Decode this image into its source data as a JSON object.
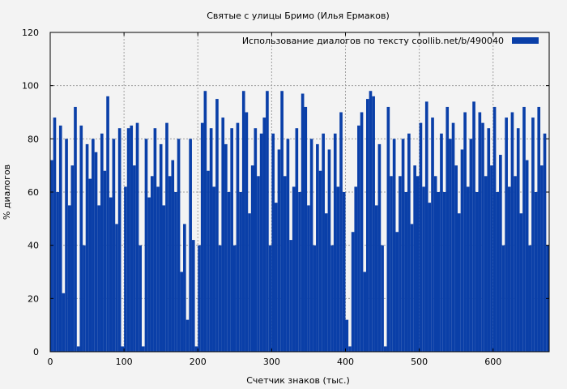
{
  "chart_data": {
    "type": "bar",
    "title": "Святые с улицы Бримо (Илья Ермаков)",
    "xlabel": "Счетчик знаков (тыс.)",
    "ylabel": "% диалогов",
    "xlim": [
      0,
      676
    ],
    "ylim": [
      0,
      120
    ],
    "xticks": [
      0,
      100,
      200,
      300,
      400,
      500,
      600
    ],
    "yticks": [
      0,
      20,
      40,
      60,
      80,
      100,
      120
    ],
    "grid": true,
    "legend_position": "top-right",
    "series": [
      {
        "name": "Использование диалогов по тексту  coollib.net/b/490040",
        "color": "#0a3fa8",
        "bar_width": 1,
        "x": [
          0,
          4,
          8,
          12,
          16,
          20,
          24,
          28,
          32,
          36,
          40,
          44,
          48,
          52,
          56,
          60,
          64,
          68,
          72,
          76,
          80,
          84,
          88,
          92,
          96,
          100,
          104,
          108,
          112,
          116,
          120,
          124,
          128,
          132,
          136,
          140,
          144,
          148,
          152,
          156,
          160,
          164,
          168,
          172,
          176,
          180,
          184,
          188,
          192,
          196,
          200,
          204,
          208,
          212,
          216,
          220,
          224,
          228,
          232,
          236,
          240,
          244,
          248,
          252,
          256,
          260,
          264,
          268,
          272,
          276,
          280,
          284,
          288,
          292,
          296,
          300,
          304,
          308,
          312,
          316,
          320,
          324,
          328,
          332,
          336,
          340,
          344,
          348,
          352,
          356,
          360,
          364,
          368,
          372,
          376,
          380,
          384,
          388,
          392,
          396,
          400,
          404,
          408,
          412,
          416,
          420,
          424,
          428,
          432,
          436,
          440,
          444,
          448,
          452,
          456,
          460,
          464,
          468,
          472,
          476,
          480,
          484,
          488,
          492,
          496,
          500,
          504,
          508,
          512,
          516,
          520,
          524,
          528,
          532,
          536,
          540,
          544,
          548,
          552,
          556,
          560,
          564,
          568,
          572,
          576,
          580,
          584,
          588,
          592,
          596,
          600,
          604,
          608,
          612,
          616,
          620,
          624,
          628,
          632,
          636,
          640,
          644,
          648,
          652,
          656,
          660,
          664,
          668,
          672
        ],
        "values": [
          72,
          88,
          60,
          85,
          22,
          80,
          55,
          70,
          92,
          2,
          85,
          40,
          78,
          65,
          80,
          75,
          55,
          82,
          68,
          96,
          58,
          80,
          48,
          84,
          2,
          62,
          84,
          85,
          70,
          86,
          40,
          2,
          80,
          58,
          66,
          84,
          62,
          78,
          55,
          86,
          66,
          72,
          60,
          80,
          30,
          48,
          12,
          80,
          42,
          2,
          40,
          86,
          98,
          68,
          84,
          62,
          95,
          40,
          88,
          78,
          60,
          84,
          40,
          86,
          60,
          98,
          90,
          52,
          70,
          84,
          66,
          82,
          88,
          98,
          40,
          82,
          56,
          76,
          98,
          66,
          80,
          42,
          62,
          84,
          60,
          97,
          92,
          55,
          80,
          40,
          78,
          68,
          82,
          52,
          76,
          40,
          82,
          62,
          90,
          60,
          12,
          2,
          45,
          62,
          85,
          90,
          30,
          95,
          98,
          96,
          55,
          78,
          40,
          2,
          92,
          66,
          80,
          45,
          66,
          80,
          60,
          82,
          48,
          70,
          66,
          86,
          62,
          94,
          56,
          88,
          66,
          60,
          82,
          60,
          92,
          80,
          86,
          70,
          52,
          76,
          90,
          62,
          80,
          94,
          60,
          90,
          86,
          66,
          84,
          70,
          92,
          60,
          74,
          40,
          88,
          62,
          90,
          66,
          84,
          52,
          92,
          72,
          40,
          88,
          60,
          92,
          70,
          82,
          40
        ]
      }
    ]
  }
}
